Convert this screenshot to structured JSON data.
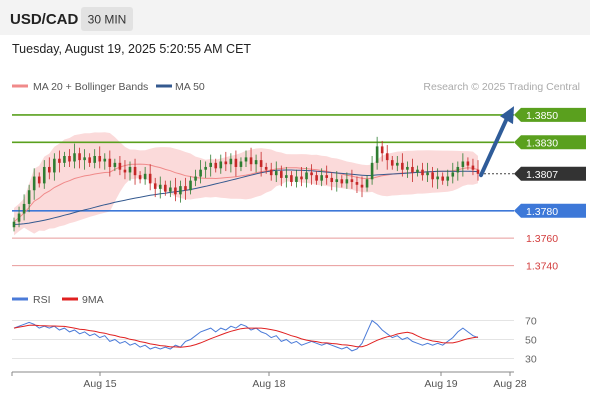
{
  "header": {
    "symbol": "USD/CAD",
    "timeframe": "30 MIN",
    "timestamp": "Tuesday, August 19, 2025 5:20:55 AM CET"
  },
  "legend": {
    "bb_label": "MA 20 + Bollinger Bands",
    "ma50_label": "MA 50",
    "credit": "Research © 2025 Trading Central"
  },
  "rsi_legend": {
    "rsi_label": "RSI",
    "ma_label": "9MA"
  },
  "colors": {
    "up": "#2e7d32",
    "down": "#c62828",
    "resistance": "#5aa01e",
    "support": "#3d78d8",
    "minor": "#e89a9a",
    "bb_fill": "#fbdada",
    "ma20": "#f08a8a",
    "ma50": "#34598f",
    "arrow": "#2f5c99",
    "current": "#333333"
  },
  "chart_data": [
    {
      "type": "candlestick",
      "title": "USD/CAD",
      "ylim": [
        1.3728,
        1.3866
      ],
      "x_ticks": [
        "Aug 15",
        "Aug 18",
        "Aug 19",
        "Aug 28"
      ],
      "levels": [
        {
          "label": "1.3850",
          "value": 1.385,
          "kind": "resistance"
        },
        {
          "label": "1.3830",
          "value": 1.383,
          "kind": "resistance"
        },
        {
          "label": "1.3807",
          "value": 1.3807,
          "kind": "current"
        },
        {
          "label": "1.3780",
          "value": 1.378,
          "kind": "support"
        },
        {
          "label": "1.3760",
          "value": 1.376,
          "kind": "minor"
        },
        {
          "label": "1.3740",
          "value": 1.374,
          "kind": "minor"
        }
      ],
      "close": [
        1.3772,
        1.3778,
        1.3785,
        1.3795,
        1.3805,
        1.38,
        1.3812,
        1.3808,
        1.3818,
        1.3815,
        1.382,
        1.3816,
        1.3822,
        1.3817,
        1.3819,
        1.3815,
        1.382,
        1.3816,
        1.3818,
        1.3812,
        1.3815,
        1.381,
        1.3808,
        1.3812,
        1.3806,
        1.3803,
        1.3807,
        1.38,
        1.3796,
        1.3799,
        1.3794,
        1.3797,
        1.3792,
        1.3798,
        1.3795,
        1.3802,
        1.3805,
        1.381,
        1.3812,
        1.3815,
        1.3811,
        1.3816,
        1.3814,
        1.3818,
        1.3812,
        1.3816,
        1.3819,
        1.3814,
        1.3817,
        1.3812,
        1.381,
        1.3806,
        1.3809,
        1.3804,
        1.3806,
        1.3801,
        1.3805,
        1.3803,
        1.3808,
        1.3806,
        1.3802,
        1.3806,
        1.3804,
        1.3801,
        1.3803,
        1.38,
        1.3803,
        1.3801,
        1.3799,
        1.3797,
        1.3803,
        1.3815,
        1.3827,
        1.3822,
        1.3817,
        1.3813,
        1.3815,
        1.381,
        1.3812,
        1.3808,
        1.381,
        1.3806,
        1.3808,
        1.3803,
        1.3805,
        1.3802,
        1.3805,
        1.3808,
        1.3812,
        1.3816,
        1.3813,
        1.381,
        1.3807
      ],
      "rsi": [
        62,
        64,
        66,
        68,
        66,
        62,
        64,
        62,
        64,
        60,
        62,
        58,
        60,
        56,
        58,
        54,
        56,
        52,
        54,
        48,
        50,
        46,
        48,
        44,
        46,
        42,
        44,
        40,
        42,
        40,
        42,
        40,
        44,
        42,
        48,
        50,
        54,
        58,
        60,
        62,
        58,
        62,
        60,
        64,
        62,
        66,
        64,
        60,
        62,
        58,
        56,
        52,
        54,
        48,
        50,
        46,
        48,
        44,
        46,
        48,
        46,
        44,
        46,
        44,
        42,
        40,
        42,
        38,
        40,
        46,
        58,
        70,
        66,
        60,
        56,
        52,
        54,
        50,
        52,
        48,
        46,
        44,
        46,
        44,
        46,
        44,
        48,
        52,
        58,
        62,
        58,
        54,
        52
      ],
      "rsi_ticks": [
        "70",
        "50",
        "30"
      ],
      "rsi_ylim": [
        20,
        80
      ]
    }
  ]
}
